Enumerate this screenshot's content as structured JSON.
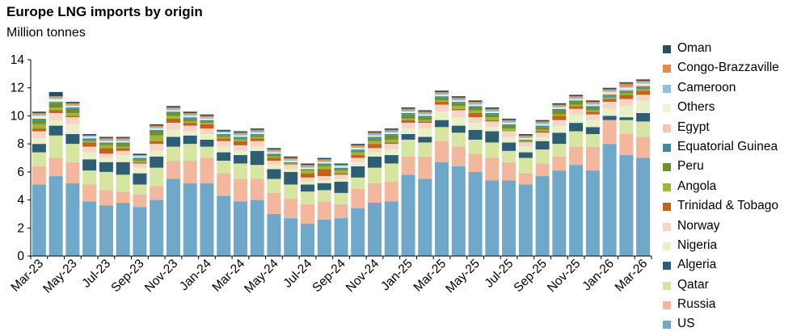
{
  "chart_data": {
    "type": "bar",
    "stacked": true,
    "title": "Europe LNG imports by origin",
    "ylabel": "Million tonnes",
    "ylim": [
      0,
      14
    ],
    "yticks": [
      0,
      2,
      4,
      6,
      8,
      10,
      12,
      14
    ],
    "categories": [
      "Mar-23",
      "Apr-23",
      "May-23",
      "Jun-23",
      "Jul-23",
      "Aug-23",
      "Sep-23",
      "Oct-23",
      "Nov-23",
      "Dec-23",
      "Jan-24",
      "Feb-24",
      "Mar-24",
      "Apr-24",
      "May-24",
      "Jun-24",
      "Jul-24",
      "Aug-24",
      "Sep-24",
      "Oct-24",
      "Nov-24",
      "Dec-24",
      "Jan-25",
      "Feb-25",
      "Mar-25",
      "Apr-25",
      "May-25",
      "Jun-25",
      "Jul-25",
      "Aug-25",
      "Sep-25",
      "Oct-25",
      "Nov-25",
      "Dec-25",
      "Jan-26",
      "Feb-26",
      "Mar-26"
    ],
    "xtick_labels": [
      "Mar-23",
      "May-23",
      "Jul-23",
      "Sep-23",
      "Nov-23",
      "Jan-24",
      "Mar-24",
      "May-24",
      "Jul-24",
      "Sep-24",
      "Nov-24",
      "Jan-25",
      "Mar-25",
      "May-25",
      "Jul-25",
      "Sep-25",
      "Nov-25",
      "Jan-26",
      "Mar-26"
    ],
    "series": [
      {
        "name": "US",
        "color": "#6fa8c9",
        "values": [
          5.1,
          5.7,
          5.2,
          3.9,
          3.6,
          3.8,
          3.5,
          4.0,
          5.5,
          5.2,
          5.2,
          4.3,
          3.9,
          4.0,
          3.0,
          2.7,
          2.3,
          2.6,
          2.7,
          3.4,
          3.8,
          3.9,
          5.8,
          5.5,
          6.7,
          6.4,
          6.0,
          5.4,
          5.4,
          5.1,
          5.7,
          6.1,
          6.5,
          6.1,
          8.0,
          7.2,
          7.0
        ]
      },
      {
        "name": "Russia",
        "color": "#f3b79e",
        "values": [
          1.3,
          1.3,
          1.5,
          1.2,
          1.1,
          0.8,
          0.9,
          1.0,
          1.3,
          1.6,
          1.8,
          1.6,
          1.6,
          1.5,
          1.5,
          1.4,
          1.4,
          1.3,
          1.0,
          1.4,
          1.4,
          1.4,
          1.3,
          1.6,
          1.5,
          1.4,
          1.3,
          1.6,
          1.3,
          0.8,
          0.9,
          1.0,
          1.3,
          1.7,
          1.7,
          1.5,
          1.5
        ]
      },
      {
        "name": "Qatar",
        "color": "#d6e6a0",
        "values": [
          1.0,
          1.6,
          1.3,
          1.0,
          1.3,
          1.2,
          0.7,
          1.3,
          1.0,
          1.2,
          0.8,
          0.9,
          1.1,
          1.0,
          1.0,
          1.0,
          0.9,
          0.8,
          0.8,
          0.8,
          1.1,
          1.3,
          1.2,
          1.0,
          1.0,
          1.0,
          1.0,
          1.1,
          0.8,
          1.1,
          1.0,
          0.9,
          1.1,
          0.9,
          0.0,
          1.0,
          1.1
        ]
      },
      {
        "name": "Algeria",
        "color": "#2e5e73",
        "values": [
          0.6,
          0.7,
          0.7,
          0.8,
          0.7,
          0.9,
          0.8,
          0.8,
          0.7,
          0.6,
          0.5,
          0.6,
          0.6,
          1.0,
          0.7,
          0.9,
          0.5,
          0.5,
          0.8,
          0.8,
          0.8,
          0.6,
          0.4,
          0.4,
          0.5,
          0.5,
          0.7,
          0.8,
          0.6,
          0.4,
          0.6,
          0.8,
          0.6,
          0.5,
          0.3,
          0.2,
          0.6
        ]
      },
      {
        "name": "Nigeria",
        "color": "#e8f0c6",
        "values": [
          0.4,
          0.4,
          0.7,
          0.5,
          0.3,
          0.5,
          0.4,
          0.4,
          0.5,
          0.3,
          0.4,
          0.4,
          0.3,
          0.3,
          0.3,
          0.2,
          0.2,
          0.2,
          0.2,
          0.3,
          0.3,
          0.4,
          0.4,
          0.6,
          0.6,
          0.6,
          0.5,
          0.3,
          0.4,
          0.4,
          0.3,
          0.5,
          0.6,
          0.5,
          0.5,
          0.8,
          0.9
        ]
      },
      {
        "name": "Norway",
        "color": "#f7d5c6",
        "values": [
          0.5,
          0.5,
          0.5,
          0.4,
          0.3,
          0.3,
          0.3,
          0.5,
          0.5,
          0.4,
          0.4,
          0.4,
          0.4,
          0.4,
          0.3,
          0.3,
          0.3,
          0.3,
          0.3,
          0.3,
          0.3,
          0.4,
          0.4,
          0.4,
          0.5,
          0.5,
          0.4,
          0.4,
          0.4,
          0.3,
          0.3,
          0.4,
          0.4,
          0.4,
          0.5,
          0.5,
          0.4
        ]
      },
      {
        "name": "Trinidad & Tobago",
        "color": "#c3621b",
        "values": [
          0.2,
          0.2,
          0.1,
          0.3,
          0.4,
          0.2,
          0.1,
          0.2,
          0.3,
          0.2,
          0.3,
          0.2,
          0.3,
          0.2,
          0.2,
          0.0,
          0.3,
          0.5,
          0.1,
          0.2,
          0.3,
          0.1,
          0.2,
          0.1,
          0.2,
          0.1,
          0.3,
          0.1,
          0.0,
          0.0,
          0.1,
          0.3,
          0.2,
          0.2,
          0.2,
          0.3,
          0.3
        ]
      },
      {
        "name": "Angola",
        "color": "#9bb83a",
        "values": [
          0.3,
          0.2,
          0.2,
          0.1,
          0.2,
          0.1,
          0.1,
          0.4,
          0.2,
          0.1,
          0.1,
          0.1,
          0.1,
          0.1,
          0.1,
          0.1,
          0.2,
          0.2,
          0.2,
          0.2,
          0.2,
          0.2,
          0.1,
          0.1,
          0.1,
          0.2,
          0.2,
          0.2,
          0.2,
          0.1,
          0.1,
          0.1,
          0.1,
          0.1,
          0.1,
          0.1,
          0.1
        ]
      },
      {
        "name": "Peru",
        "color": "#6f8f2a",
        "values": [
          0.3,
          0.3,
          0.3,
          0.1,
          0.1,
          0.2,
          0.1,
          0.3,
          0.2,
          0.2,
          0.1,
          0.1,
          0.1,
          0.1,
          0.1,
          0.1,
          0.1,
          0.1,
          0.1,
          0.1,
          0.2,
          0.3,
          0.3,
          0.2,
          0.2,
          0.2,
          0.2,
          0.2,
          0.2,
          0.1,
          0.2,
          0.3,
          0.2,
          0.2,
          0.1,
          0.1,
          0.1
        ]
      },
      {
        "name": "Equatorial Guinea",
        "color": "#3e8aa6",
        "values": [
          0.1,
          0.1,
          0.1,
          0.1,
          0.1,
          0.1,
          0.1,
          0.1,
          0.1,
          0.1,
          0.1,
          0.1,
          0.1,
          0.1,
          0.1,
          0.0,
          0.0,
          0.1,
          0.1,
          0.1,
          0.1,
          0.1,
          0.1,
          0.1,
          0.1,
          0.1,
          0.1,
          0.1,
          0.1,
          0.0,
          0.1,
          0.1,
          0.1,
          0.1,
          0.1,
          0.1,
          0.1
        ]
      },
      {
        "name": "Egypt",
        "color": "#f2c7b3",
        "values": [
          0.0,
          0.0,
          0.0,
          0.0,
          0.0,
          0.0,
          0.0,
          0.0,
          0.0,
          0.0,
          0.0,
          0.0,
          0.0,
          0.0,
          0.0,
          0.0,
          0.0,
          0.0,
          0.0,
          0.0,
          0.0,
          0.0,
          0.0,
          0.0,
          0.0,
          0.0,
          0.0,
          0.0,
          0.0,
          0.0,
          0.0,
          0.0,
          0.0,
          0.0,
          0.1,
          0.1,
          0.1
        ]
      },
      {
        "name": "Others",
        "color": "#eef3d4",
        "values": [
          0.2,
          0.2,
          0.1,
          0.1,
          0.1,
          0.1,
          0.1,
          0.1,
          0.1,
          0.1,
          0.1,
          0.1,
          0.1,
          0.1,
          0.1,
          0.1,
          0.1,
          0.1,
          0.1,
          0.1,
          0.1,
          0.1,
          0.1,
          0.1,
          0.1,
          0.1,
          0.1,
          0.1,
          0.1,
          0.1,
          0.1,
          0.1,
          0.1,
          0.1,
          0.1,
          0.1,
          0.1
        ]
      },
      {
        "name": "Cameroon",
        "color": "#8ec1d6",
        "values": [
          0.1,
          0.1,
          0.1,
          0.1,
          0.1,
          0.1,
          0.1,
          0.1,
          0.1,
          0.1,
          0.1,
          0.1,
          0.1,
          0.1,
          0.1,
          0.1,
          0.1,
          0.1,
          0.1,
          0.1,
          0.1,
          0.1,
          0.1,
          0.1,
          0.1,
          0.1,
          0.1,
          0.1,
          0.1,
          0.1,
          0.1,
          0.1,
          0.1,
          0.1,
          0.1,
          0.1,
          0.1
        ]
      },
      {
        "name": "Congo-Brazzaville",
        "color": "#e8894a",
        "values": [
          0.1,
          0.1,
          0.1,
          0.0,
          0.1,
          0.1,
          0.0,
          0.1,
          0.1,
          0.1,
          0.1,
          0.0,
          0.1,
          0.1,
          0.1,
          0.1,
          0.1,
          0.1,
          0.0,
          0.1,
          0.1,
          0.1,
          0.1,
          0.1,
          0.1,
          0.1,
          0.1,
          0.1,
          0.1,
          0.1,
          0.1,
          0.1,
          0.1,
          0.1,
          0.1,
          0.2,
          0.1
        ]
      },
      {
        "name": "Oman",
        "color": "#274f5e",
        "values": [
          0.1,
          0.3,
          0.1,
          0.1,
          0.1,
          0.1,
          0.1,
          0.1,
          0.1,
          0.1,
          0.1,
          0.1,
          0.1,
          0.1,
          0.1,
          0.1,
          0.1,
          0.1,
          0.1,
          0.1,
          0.1,
          0.1,
          0.1,
          0.1,
          0.1,
          0.1,
          0.1,
          0.1,
          0.1,
          0.1,
          0.1,
          0.1,
          0.1,
          0.1,
          0.1,
          0.1,
          0.1
        ]
      }
    ],
    "legend_position": "right",
    "grid": false
  }
}
